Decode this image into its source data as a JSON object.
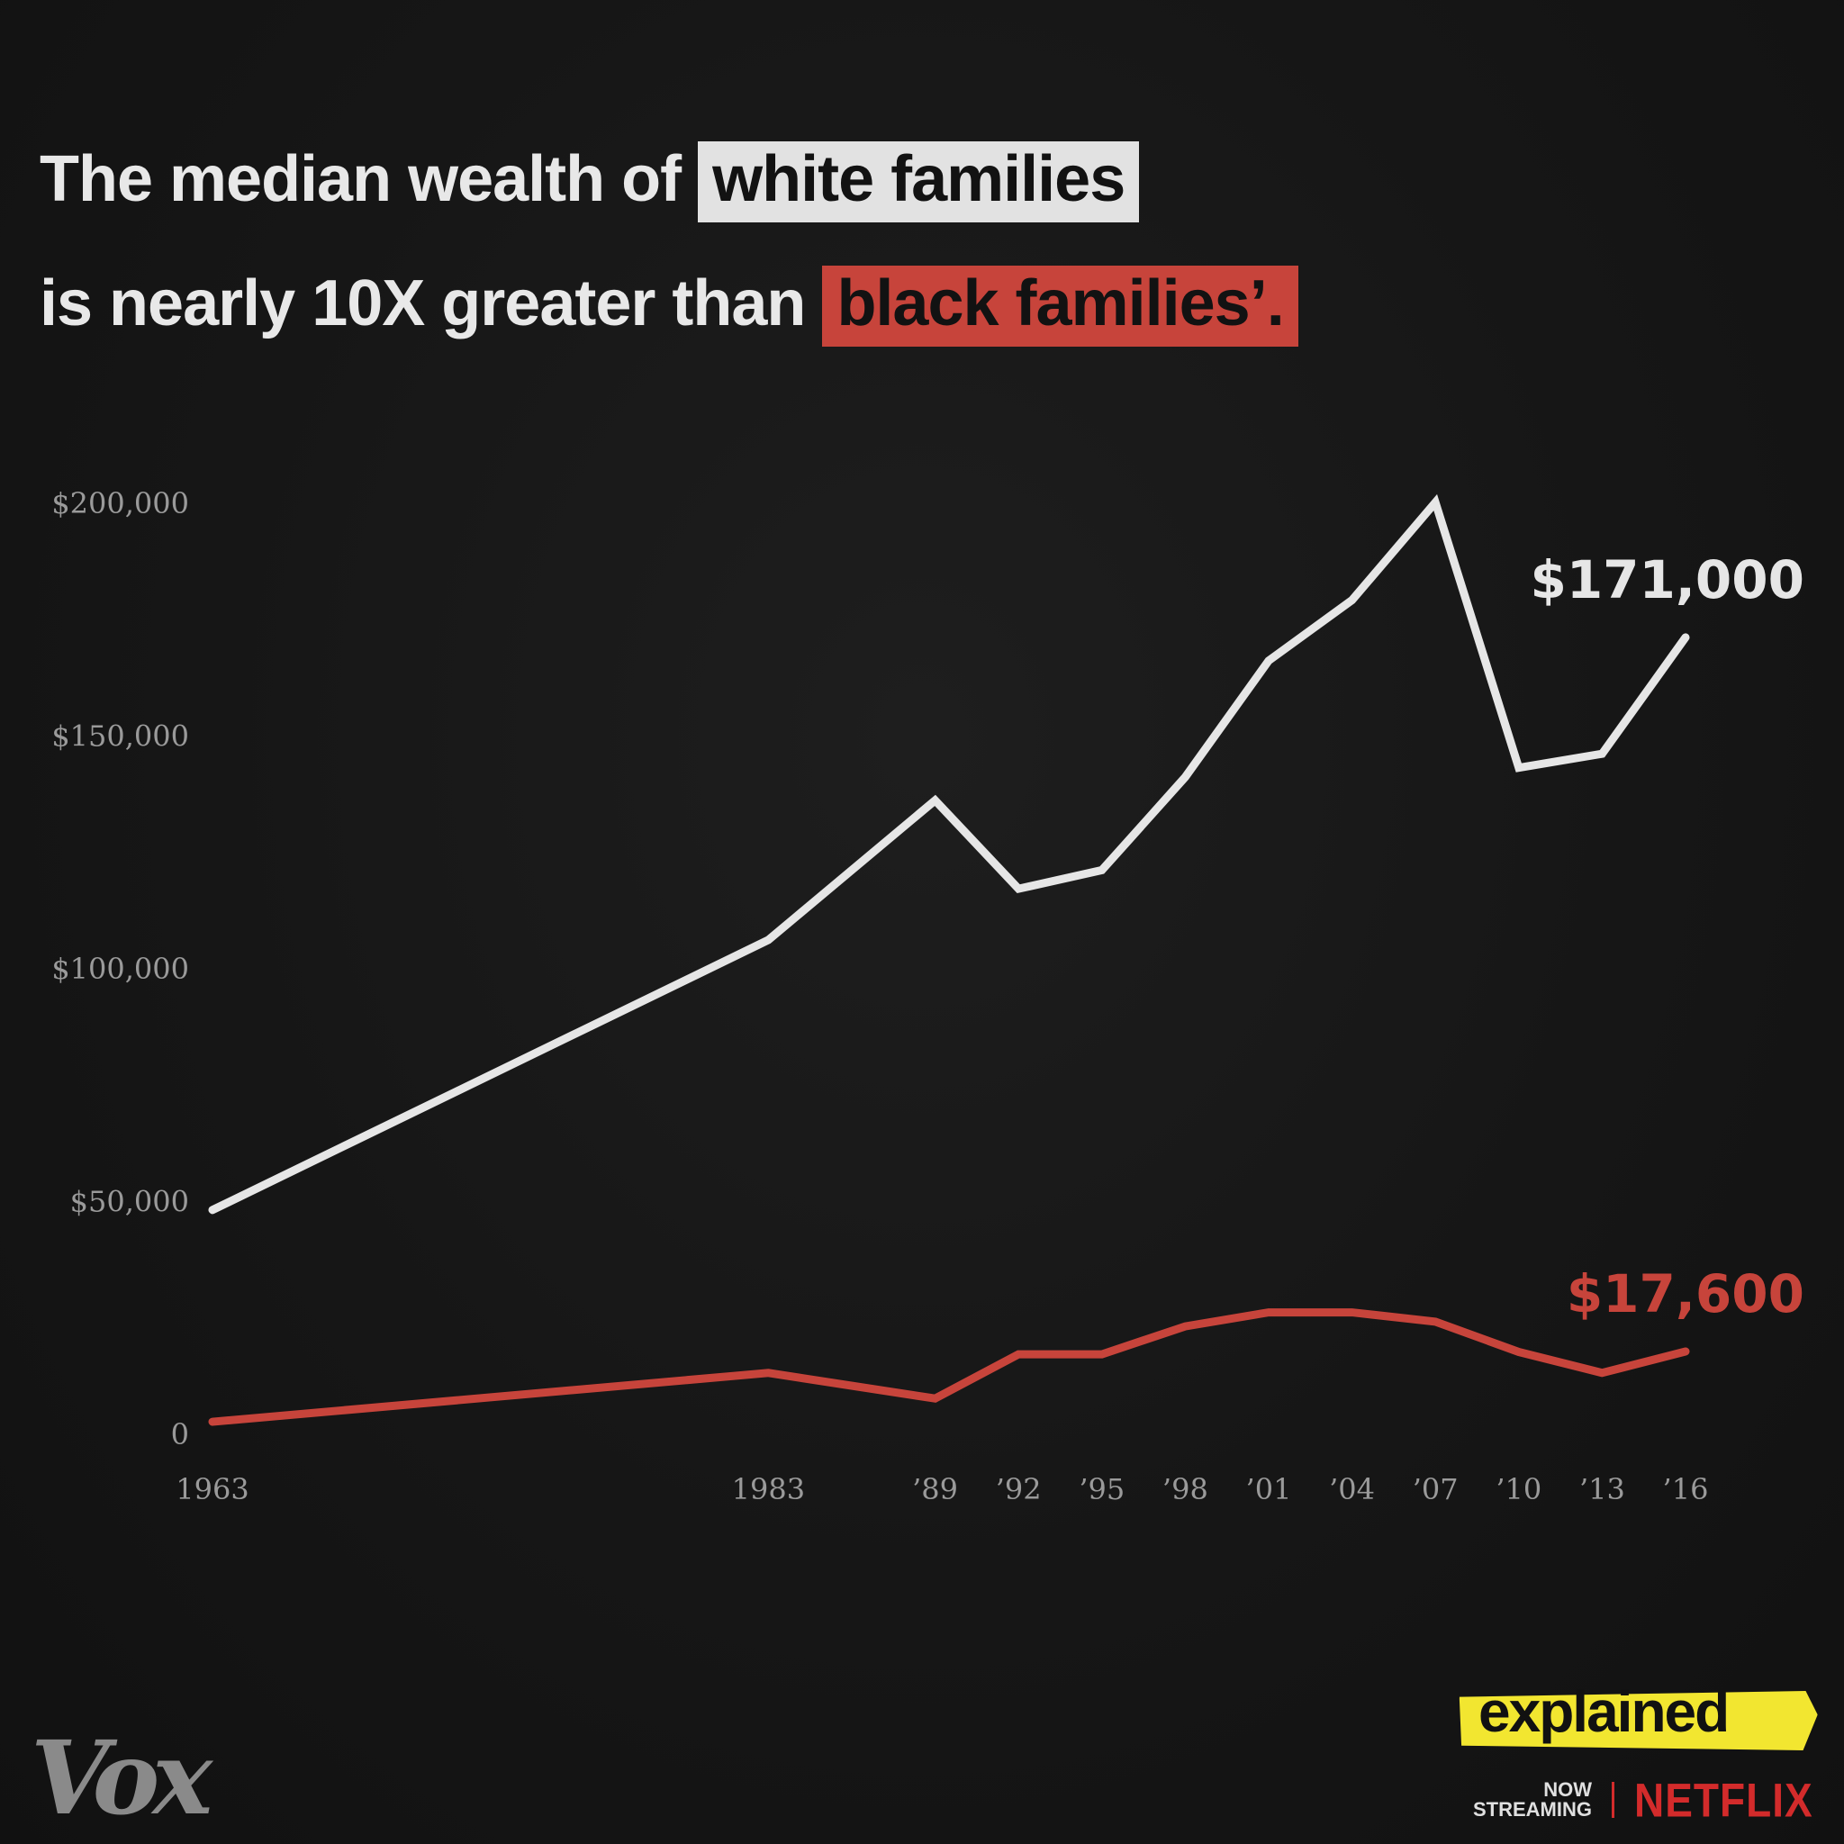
{
  "title": {
    "line1_prefix": "The median wealth of",
    "line1_highlight": "white families",
    "line2_prefix": "is nearly 10X greater than",
    "line2_highlight": "black families’."
  },
  "chart_data": {
    "type": "line",
    "x": [
      1963,
      1983,
      1989,
      1992,
      1995,
      1998,
      2001,
      2004,
      2007,
      2010,
      2013,
      2016
    ],
    "x_tick_labels": [
      "1963",
      "1983",
      "’89",
      "’92",
      "’95",
      "’98",
      "’01",
      "’04",
      "’07",
      "’10",
      "’13",
      "’16"
    ],
    "y_tick_values": [
      0,
      50000,
      100000,
      150000,
      200000
    ],
    "y_tick_labels": [
      "0",
      "$50,000",
      "$100,000",
      "$150,000",
      "$200,000"
    ],
    "ylim": [
      0,
      200000
    ],
    "grid": false,
    "series": [
      {
        "key": "white",
        "color": "#e6e6e6",
        "values": [
          48000,
          106000,
          136000,
          117000,
          121000,
          141000,
          166000,
          179000,
          200000,
          143000,
          146000,
          171000
        ],
        "end_label": "$171,000"
      },
      {
        "key": "black",
        "color": "#c7443b",
        "values": [
          2500,
          13000,
          7500,
          17000,
          17000,
          23000,
          26000,
          26000,
          24000,
          17500,
          13000,
          17600
        ],
        "end_label": "$17,600"
      }
    ]
  },
  "branding": {
    "vox": "Vox",
    "explained": "explained",
    "now": "NOW",
    "streaming": "STREAMING",
    "netflix": "NETFLIX",
    "explained_color": "#f2e630",
    "netflix_color": "#d32b2b"
  }
}
